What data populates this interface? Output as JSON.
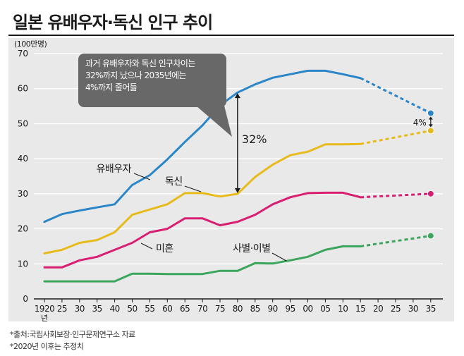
{
  "title": "일본 유배우자·독신 인구 추이",
  "chart_data": {
    "type": "line",
    "ylabel": "(100만명)",
    "ylim": [
      0,
      70
    ],
    "yticks": [
      0,
      10,
      20,
      30,
      40,
      50,
      60,
      70
    ],
    "x_tick_labels": [
      "1920",
      "25",
      "30",
      "35",
      "40",
      "50",
      "55",
      "60",
      "65",
      "70",
      "75",
      "80",
      "85",
      "90",
      "95",
      "00",
      "05",
      "10",
      "15",
      "20",
      "25",
      "30",
      "35"
    ],
    "x_first_suffix": "년",
    "grid": true,
    "series": [
      {
        "name": "유배우자",
        "color": "#2a86c8",
        "values": [
          22,
          24.2,
          25.2,
          26.1,
          27,
          32.5,
          35.3,
          39.8,
          44.8,
          49.5,
          55.2,
          58.9,
          61.2,
          63.1,
          64.1,
          65.1,
          65.1,
          64.1,
          63,
          null,
          null,
          null,
          null
        ],
        "projection": [
          [
            18,
            63
          ],
          [
            22,
            53
          ]
        ]
      },
      {
        "name": "독신",
        "color": "#e8bb1c",
        "values": [
          13,
          14,
          16,
          16.8,
          19,
          24,
          25.5,
          27,
          30.2,
          30.2,
          29.2,
          30,
          34.8,
          38.3,
          41,
          42,
          44.1,
          44.1,
          44.2,
          null,
          null,
          null,
          null
        ],
        "projection": [
          [
            18,
            44.2
          ],
          [
            22,
            48
          ]
        ]
      },
      {
        "name": "미혼",
        "color": "#d81f72",
        "values": [
          9,
          9,
          11,
          12,
          14,
          16,
          19,
          20,
          23,
          23,
          21,
          22,
          24,
          27,
          29,
          30.2,
          30.3,
          30.3,
          29,
          null,
          null,
          null,
          null
        ],
        "projection": [
          [
            18,
            29
          ],
          [
            22,
            30
          ]
        ]
      },
      {
        "name": "사별·이별",
        "color": "#3ba55c",
        "values": [
          5,
          5,
          5,
          5,
          5,
          7.2,
          7.2,
          7.1,
          7.1,
          7.1,
          8,
          8,
          10.2,
          10.1,
          11,
          12,
          14,
          15,
          15,
          null,
          null,
          null,
          null
        ],
        "projection": [
          [
            18,
            15
          ],
          [
            22,
            18
          ]
        ]
      }
    ],
    "annotations": {
      "callout": "과거 유배우자와 독신 인구차이는\n32%까지 났으나 2035년에는\n4%까지 줄어듦",
      "gap_1980_label": "32%",
      "gap_2035_label": "4%"
    }
  },
  "footnotes": [
    "*출처:국립사회보장·인구문제연구소 자료",
    "*2020년 이후는 추정치"
  ]
}
